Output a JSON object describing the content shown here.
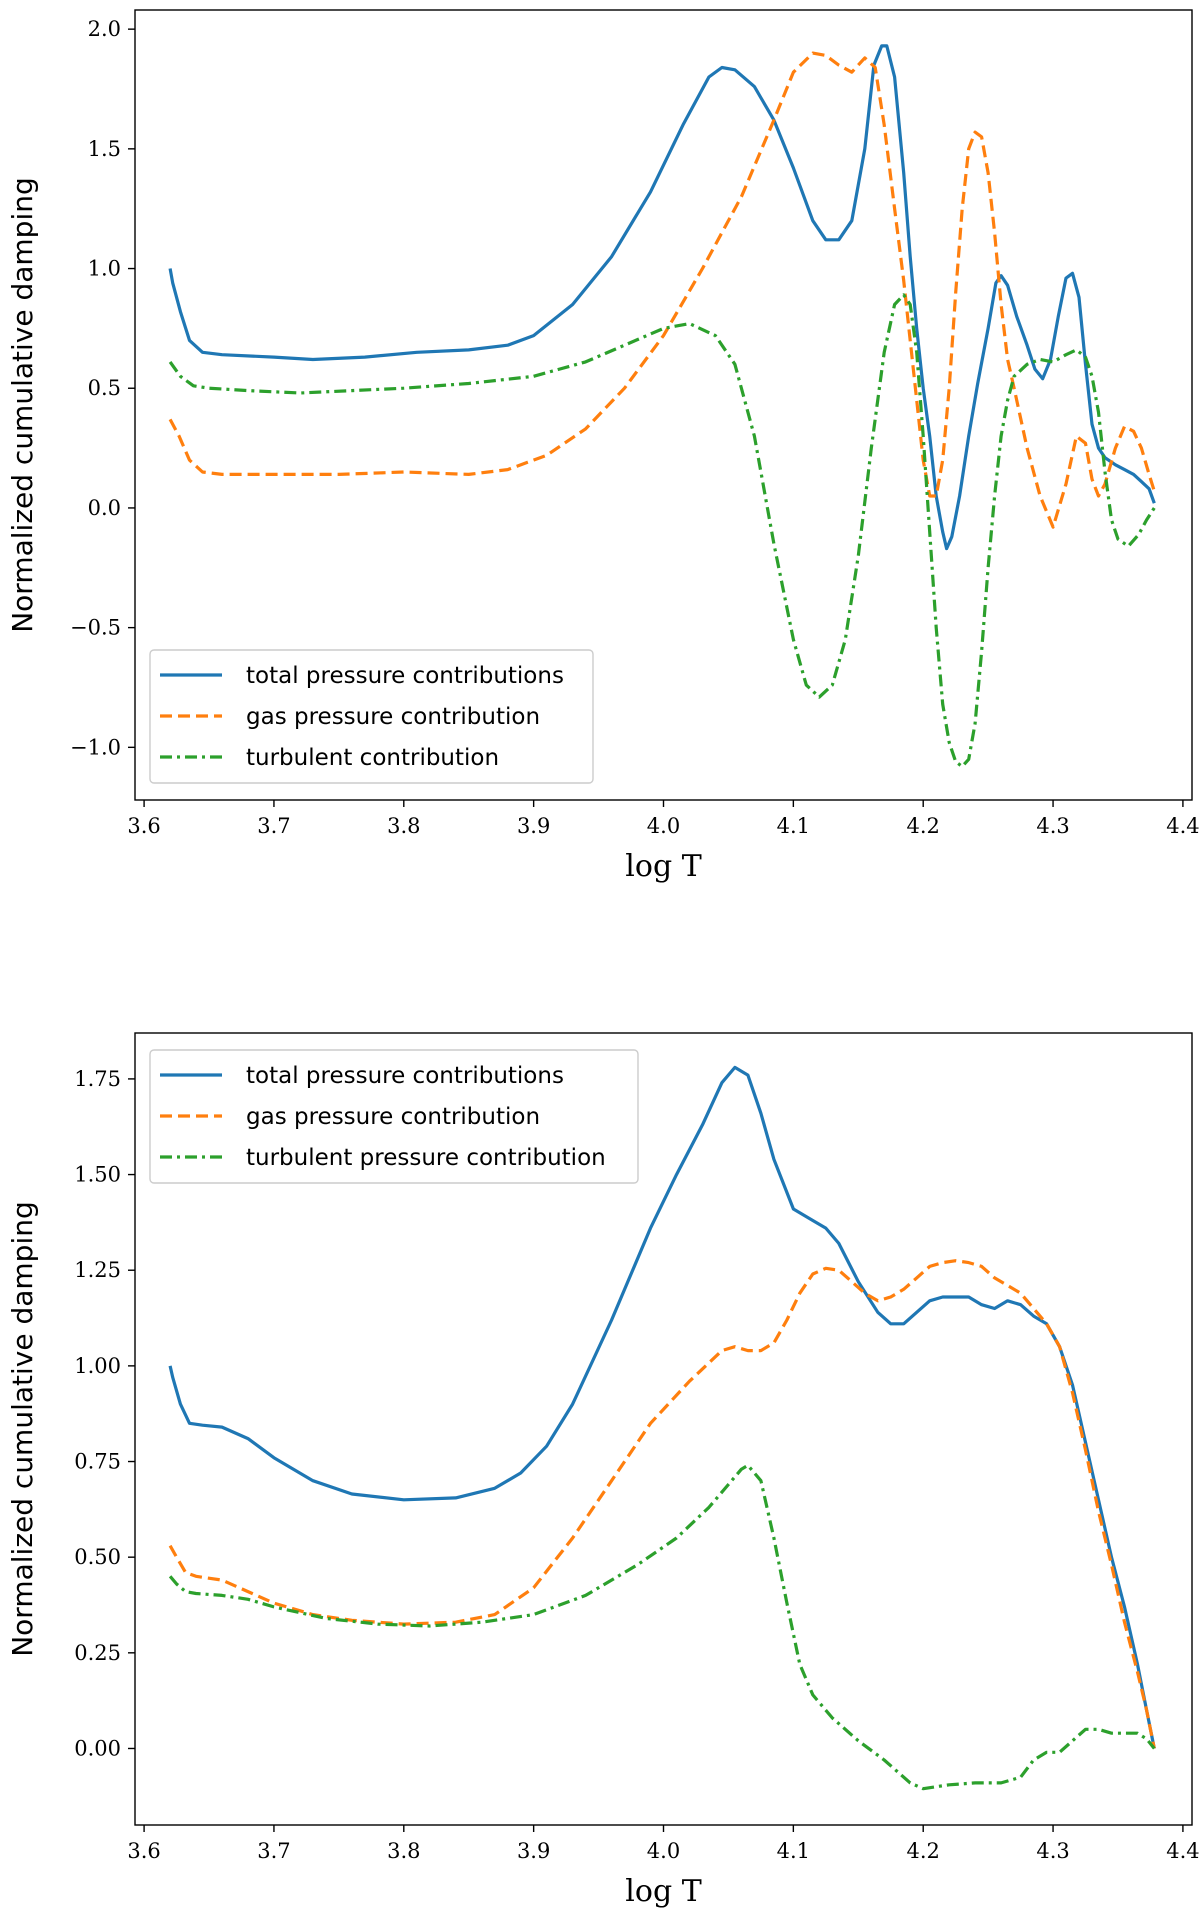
{
  "chart_data": [
    {
      "type": "line",
      "xlabel": "log T",
      "ylabel": "Normalized cumulative damping",
      "xlim": [
        3.593,
        4.407
      ],
      "ylim": [
        -1.22,
        2.08
      ],
      "xticks": [
        3.6,
        3.7,
        3.8,
        3.9,
        4.0,
        4.1,
        4.2,
        4.3,
        4.4
      ],
      "xtick_labels": [
        "3.6",
        "3.7",
        "3.8",
        "3.9",
        "4.0",
        "4.1",
        "4.2",
        "4.3",
        "4.4"
      ],
      "yticks": [
        -1.0,
        -0.5,
        0.0,
        0.5,
        1.0,
        1.5,
        2.0
      ],
      "ytick_labels": [
        "−1.0",
        "−0.5",
        "0.0",
        "0.5",
        "1.0",
        "1.5",
        "2.0"
      ],
      "legend_position": "lower-left",
      "grid": false,
      "series": [
        {
          "name": "total pressure contributions",
          "color": "#1f77b4",
          "style": "solid",
          "x": [
            3.62,
            3.622,
            3.628,
            3.635,
            3.645,
            3.66,
            3.7,
            3.73,
            3.77,
            3.81,
            3.85,
            3.88,
            3.9,
            3.93,
            3.96,
            3.99,
            4.015,
            4.035,
            4.045,
            4.055,
            4.07,
            4.085,
            4.1,
            4.115,
            4.125,
            4.135,
            4.145,
            4.155,
            4.162,
            4.168,
            4.172,
            4.178,
            4.185,
            4.19,
            4.195,
            4.2,
            4.205,
            4.21,
            4.215,
            4.218,
            4.222,
            4.228,
            4.235,
            4.242,
            4.25,
            4.256,
            4.26,
            4.265,
            4.272,
            4.28,
            4.286,
            4.292,
            4.298,
            4.304,
            4.31,
            4.315,
            4.32,
            4.325,
            4.33,
            4.335,
            4.34,
            4.348,
            4.355,
            4.362,
            4.368,
            4.374,
            4.378
          ],
          "y": [
            1.0,
            0.94,
            0.82,
            0.7,
            0.65,
            0.64,
            0.63,
            0.62,
            0.63,
            0.65,
            0.66,
            0.68,
            0.72,
            0.85,
            1.05,
            1.32,
            1.6,
            1.8,
            1.84,
            1.83,
            1.76,
            1.62,
            1.42,
            1.2,
            1.12,
            1.12,
            1.2,
            1.5,
            1.85,
            1.93,
            1.93,
            1.8,
            1.4,
            1.05,
            0.75,
            0.5,
            0.3,
            0.05,
            -0.1,
            -0.17,
            -0.12,
            0.05,
            0.3,
            0.52,
            0.75,
            0.94,
            0.97,
            0.93,
            0.8,
            0.68,
            0.58,
            0.54,
            0.62,
            0.8,
            0.96,
            0.98,
            0.88,
            0.6,
            0.35,
            0.25,
            0.21,
            0.18,
            0.16,
            0.14,
            0.11,
            0.08,
            0.02
          ]
        },
        {
          "name": "gas pressure contribution",
          "color": "#ff7f0e",
          "style": "dashed",
          "x": [
            3.62,
            3.627,
            3.635,
            3.645,
            3.66,
            3.7,
            3.75,
            3.8,
            3.85,
            3.88,
            3.91,
            3.94,
            3.97,
            4.0,
            4.03,
            4.06,
            4.085,
            4.1,
            4.115,
            4.125,
            4.135,
            4.145,
            4.155,
            4.163,
            4.17,
            4.178,
            4.185,
            4.19,
            4.195,
            4.2,
            4.205,
            4.21,
            4.215,
            4.22,
            4.225,
            4.23,
            4.235,
            4.24,
            4.245,
            4.25,
            4.255,
            4.26,
            4.265,
            4.27,
            4.28,
            4.29,
            4.3,
            4.31,
            4.318,
            4.325,
            4.33,
            4.335,
            4.34,
            4.348,
            4.355,
            4.362,
            4.368,
            4.374,
            4.378
          ],
          "y": [
            0.37,
            0.3,
            0.2,
            0.15,
            0.14,
            0.14,
            0.14,
            0.15,
            0.14,
            0.16,
            0.22,
            0.33,
            0.5,
            0.72,
            1.0,
            1.3,
            1.62,
            1.82,
            1.9,
            1.89,
            1.85,
            1.82,
            1.88,
            1.84,
            1.6,
            1.25,
            0.95,
            0.7,
            0.45,
            0.2,
            0.05,
            0.05,
            0.2,
            0.5,
            0.9,
            1.25,
            1.5,
            1.57,
            1.55,
            1.4,
            1.15,
            0.85,
            0.62,
            0.5,
            0.25,
            0.05,
            -0.08,
            0.1,
            0.3,
            0.27,
            0.12,
            0.05,
            0.1,
            0.25,
            0.34,
            0.32,
            0.25,
            0.14,
            0.07
          ]
        },
        {
          "name": "turbulent contribution",
          "color": "#2ca02c",
          "style": "dashdot",
          "x": [
            3.62,
            3.628,
            3.638,
            3.65,
            3.68,
            3.72,
            3.76,
            3.8,
            3.85,
            3.9,
            3.94,
            3.97,
            4.0,
            4.02,
            4.04,
            4.055,
            4.07,
            4.085,
            4.1,
            4.11,
            4.12,
            4.13,
            4.14,
            4.15,
            4.16,
            4.17,
            4.178,
            4.185,
            4.19,
            4.195,
            4.2,
            4.205,
            4.21,
            4.215,
            4.22,
            4.225,
            4.23,
            4.235,
            4.24,
            4.245,
            4.25,
            4.255,
            4.26,
            4.265,
            4.27,
            4.28,
            4.29,
            4.3,
            4.31,
            4.318,
            4.325,
            4.33,
            4.335,
            4.34,
            4.345,
            4.35,
            4.358,
            4.366,
            4.372,
            4.378
          ],
          "y": [
            0.61,
            0.55,
            0.51,
            0.5,
            0.49,
            0.48,
            0.49,
            0.5,
            0.52,
            0.55,
            0.61,
            0.68,
            0.75,
            0.77,
            0.72,
            0.6,
            0.3,
            -0.15,
            -0.55,
            -0.74,
            -0.79,
            -0.74,
            -0.55,
            -0.2,
            0.25,
            0.65,
            0.85,
            0.89,
            0.85,
            0.65,
            0.3,
            -0.1,
            -0.5,
            -0.82,
            -0.98,
            -1.06,
            -1.08,
            -1.05,
            -0.9,
            -0.6,
            -0.25,
            0.05,
            0.3,
            0.45,
            0.55,
            0.6,
            0.62,
            0.61,
            0.64,
            0.66,
            0.63,
            0.55,
            0.4,
            0.15,
            -0.05,
            -0.13,
            -0.16,
            -0.11,
            -0.05,
            0.0
          ]
        }
      ]
    },
    {
      "type": "line",
      "xlabel": "log T",
      "ylabel": "Normalized cumulative damping",
      "xlim": [
        3.593,
        4.407
      ],
      "ylim": [
        -0.2,
        1.87
      ],
      "xticks": [
        3.6,
        3.7,
        3.8,
        3.9,
        4.0,
        4.1,
        4.2,
        4.3,
        4.4
      ],
      "xtick_labels": [
        "3.6",
        "3.7",
        "3.8",
        "3.9",
        "4.0",
        "4.1",
        "4.2",
        "4.3",
        "4.4"
      ],
      "yticks": [
        0.0,
        0.25,
        0.5,
        0.75,
        1.0,
        1.25,
        1.5,
        1.75
      ],
      "ytick_labels": [
        "0.00",
        "0.25",
        "0.50",
        "0.75",
        "1.00",
        "1.25",
        "1.50",
        "1.75"
      ],
      "legend_position": "upper-left",
      "grid": false,
      "series": [
        {
          "name": "total pressure contributions",
          "color": "#1f77b4",
          "style": "solid",
          "x": [
            3.62,
            3.622,
            3.628,
            3.635,
            3.645,
            3.66,
            3.68,
            3.7,
            3.73,
            3.76,
            3.8,
            3.84,
            3.87,
            3.89,
            3.91,
            3.93,
            3.96,
            3.99,
            4.01,
            4.03,
            4.045,
            4.055,
            4.065,
            4.075,
            4.085,
            4.1,
            4.115,
            4.125,
            4.135,
            4.15,
            4.165,
            4.175,
            4.185,
            4.195,
            4.205,
            4.215,
            4.225,
            4.235,
            4.245,
            4.255,
            4.265,
            4.275,
            4.285,
            4.295,
            4.305,
            4.315,
            4.325,
            4.335,
            4.345,
            4.355,
            4.365,
            4.372,
            4.378
          ],
          "y": [
            1.0,
            0.97,
            0.9,
            0.85,
            0.845,
            0.84,
            0.81,
            0.76,
            0.7,
            0.665,
            0.65,
            0.655,
            0.68,
            0.72,
            0.79,
            0.9,
            1.12,
            1.36,
            1.5,
            1.63,
            1.74,
            1.78,
            1.76,
            1.66,
            1.54,
            1.41,
            1.38,
            1.36,
            1.32,
            1.22,
            1.14,
            1.11,
            1.11,
            1.14,
            1.17,
            1.18,
            1.18,
            1.18,
            1.16,
            1.15,
            1.17,
            1.16,
            1.13,
            1.11,
            1.05,
            0.95,
            0.8,
            0.65,
            0.5,
            0.37,
            0.22,
            0.1,
            0.0
          ]
        },
        {
          "name": "gas pressure contribution",
          "color": "#ff7f0e",
          "style": "dashed",
          "x": [
            3.62,
            3.625,
            3.632,
            3.64,
            3.66,
            3.68,
            3.7,
            3.73,
            3.76,
            3.8,
            3.84,
            3.87,
            3.9,
            3.93,
            3.96,
            3.99,
            4.02,
            4.045,
            4.055,
            4.065,
            4.075,
            4.085,
            4.095,
            4.105,
            4.115,
            4.125,
            4.135,
            4.145,
            4.155,
            4.165,
            4.175,
            4.185,
            4.195,
            4.205,
            4.215,
            4.225,
            4.235,
            4.245,
            4.255,
            4.265,
            4.275,
            4.285,
            4.295,
            4.305,
            4.315,
            4.325,
            4.335,
            4.345,
            4.355,
            4.365,
            4.372,
            4.378
          ],
          "y": [
            0.53,
            0.5,
            0.46,
            0.45,
            0.44,
            0.41,
            0.38,
            0.35,
            0.335,
            0.325,
            0.33,
            0.35,
            0.42,
            0.55,
            0.7,
            0.85,
            0.96,
            1.04,
            1.05,
            1.04,
            1.04,
            1.06,
            1.12,
            1.19,
            1.24,
            1.255,
            1.25,
            1.22,
            1.19,
            1.17,
            1.18,
            1.2,
            1.23,
            1.26,
            1.27,
            1.275,
            1.27,
            1.26,
            1.23,
            1.21,
            1.19,
            1.15,
            1.11,
            1.05,
            0.93,
            0.78,
            0.62,
            0.48,
            0.33,
            0.2,
            0.1,
            0.0
          ]
        },
        {
          "name": "turbulent pressure contribution",
          "color": "#2ca02c",
          "style": "dashdot",
          "x": [
            3.62,
            3.625,
            3.632,
            3.64,
            3.66,
            3.68,
            3.7,
            3.74,
            3.78,
            3.82,
            3.86,
            3.9,
            3.94,
            3.98,
            4.01,
            4.035,
            4.05,
            4.06,
            4.065,
            4.075,
            4.085,
            4.095,
            4.105,
            4.115,
            4.13,
            4.15,
            4.17,
            4.19,
            4.2,
            4.21,
            4.22,
            4.24,
            4.26,
            4.275,
            4.285,
            4.295,
            4.305,
            4.315,
            4.325,
            4.335,
            4.345,
            4.355,
            4.365,
            4.372,
            4.378
          ],
          "y": [
            0.45,
            0.43,
            0.41,
            0.405,
            0.4,
            0.39,
            0.37,
            0.34,
            0.325,
            0.32,
            0.33,
            0.35,
            0.4,
            0.48,
            0.55,
            0.63,
            0.69,
            0.73,
            0.74,
            0.7,
            0.55,
            0.38,
            0.22,
            0.14,
            0.08,
            0.02,
            -0.03,
            -0.09,
            -0.105,
            -0.1,
            -0.095,
            -0.09,
            -0.09,
            -0.075,
            -0.03,
            -0.01,
            -0.01,
            0.02,
            0.05,
            0.05,
            0.04,
            0.04,
            0.04,
            0.025,
            0.0
          ]
        }
      ]
    }
  ]
}
